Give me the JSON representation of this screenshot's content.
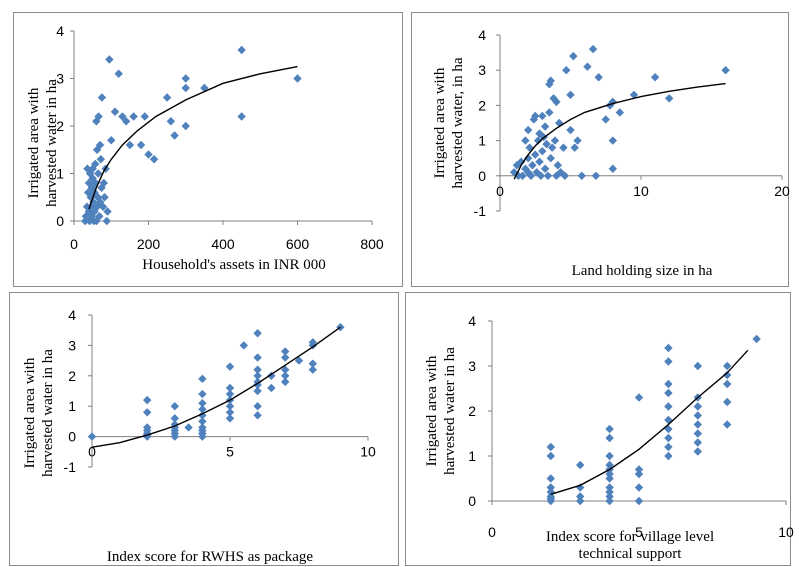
{
  "chart_data": [
    {
      "type": "scatter",
      "xlabel": "Household's assets in INR 000",
      "ylabel": [
        "Irrigated area with",
        "harvested water in ha"
      ],
      "xlim": [
        0,
        800
      ],
      "ylim": [
        0,
        4
      ],
      "xticks": [
        0,
        200,
        400,
        600,
        800
      ],
      "yticks": [
        0,
        1,
        2,
        3,
        4
      ],
      "trendline": "logarithmic",
      "points": [
        [
          30,
          0.0
        ],
        [
          32,
          0.1
        ],
        [
          35,
          0.3
        ],
        [
          36,
          1.1
        ],
        [
          38,
          0.6
        ],
        [
          40,
          0.8
        ],
        [
          40,
          0.2
        ],
        [
          42,
          0.0
        ],
        [
          43,
          1.0
        ],
        [
          45,
          0.5
        ],
        [
          46,
          0.3
        ],
        [
          48,
          0.7
        ],
        [
          48,
          0.1
        ],
        [
          50,
          0.9
        ],
        [
          50,
          1.1
        ],
        [
          52,
          0.4
        ],
        [
          53,
          0.0
        ],
        [
          55,
          0.2
        ],
        [
          55,
          0.6
        ],
        [
          57,
          1.2
        ],
        [
          58,
          0.8
        ],
        [
          60,
          2.1
        ],
        [
          60,
          0.0
        ],
        [
          62,
          1.5
        ],
        [
          62,
          0.3
        ],
        [
          64,
          0.5
        ],
        [
          65,
          1.0
        ],
        [
          66,
          2.2
        ],
        [
          68,
          0.1
        ],
        [
          70,
          0.4
        ],
        [
          70,
          1.6
        ],
        [
          72,
          1.3
        ],
        [
          74,
          0.7
        ],
        [
          75,
          2.6
        ],
        [
          78,
          0.3
        ],
        [
          80,
          0.8
        ],
        [
          82,
          0.5
        ],
        [
          85,
          1.1
        ],
        [
          88,
          0.0
        ],
        [
          90,
          0.2
        ],
        [
          95,
          3.4
        ],
        [
          100,
          1.7
        ],
        [
          110,
          2.3
        ],
        [
          120,
          3.1
        ],
        [
          130,
          2.2
        ],
        [
          140,
          2.1
        ],
        [
          150,
          1.6
        ],
        [
          160,
          2.2
        ],
        [
          180,
          1.6
        ],
        [
          190,
          2.2
        ],
        [
          200,
          1.4
        ],
        [
          215,
          1.3
        ],
        [
          250,
          2.6
        ],
        [
          260,
          2.1
        ],
        [
          270,
          1.8
        ],
        [
          300,
          2.0
        ],
        [
          300,
          2.8
        ],
        [
          300,
          3.0
        ],
        [
          350,
          2.8
        ],
        [
          450,
          2.2
        ],
        [
          450,
          3.6
        ],
        [
          600,
          3.0
        ]
      ],
      "fit": [
        [
          40,
          0.25
        ],
        [
          60,
          0.7
        ],
        [
          80,
          1.05
        ],
        [
          100,
          1.3
        ],
        [
          130,
          1.6
        ],
        [
          170,
          1.9
        ],
        [
          220,
          2.2
        ],
        [
          300,
          2.55
        ],
        [
          400,
          2.9
        ],
        [
          500,
          3.1
        ],
        [
          600,
          3.25
        ]
      ]
    },
    {
      "type": "scatter",
      "xlabel": "Land holding size in ha",
      "ylabel": [
        "Irrigated area with",
        "harvested water, in ha"
      ],
      "xlim": [
        0,
        20
      ],
      "ylim": [
        -1,
        4
      ],
      "xticks": [
        0,
        10,
        20
      ],
      "yticks": [
        -1,
        0,
        1,
        2,
        3,
        4
      ],
      "trendline": "logarithmic",
      "points": [
        [
          1.0,
          0.1
        ],
        [
          1.2,
          0.3
        ],
        [
          1.3,
          0.0
        ],
        [
          1.5,
          0.4
        ],
        [
          1.6,
          0.0
        ],
        [
          1.8,
          0.2
        ],
        [
          1.8,
          1.0
        ],
        [
          2.0,
          0.1
        ],
        [
          2.0,
          0.5
        ],
        [
          2.0,
          1.3
        ],
        [
          2.1,
          0.8
        ],
        [
          2.2,
          0.0
        ],
        [
          2.3,
          0.3
        ],
        [
          2.4,
          1.6
        ],
        [
          2.5,
          0.6
        ],
        [
          2.5,
          1.7
        ],
        [
          2.6,
          0.1
        ],
        [
          2.7,
          1.0
        ],
        [
          2.8,
          0.4
        ],
        [
          2.8,
          1.2
        ],
        [
          2.9,
          0.0
        ],
        [
          3.0,
          0.7
        ],
        [
          3.0,
          1.7
        ],
        [
          3.1,
          1.1
        ],
        [
          3.2,
          0.2
        ],
        [
          3.2,
          1.4
        ],
        [
          3.3,
          0.9
        ],
        [
          3.4,
          0.0
        ],
        [
          3.5,
          2.6
        ],
        [
          3.5,
          1.8
        ],
        [
          3.6,
          2.7
        ],
        [
          3.6,
          0.5
        ],
        [
          3.7,
          0.8
        ],
        [
          3.8,
          2.2
        ],
        [
          3.9,
          1.0
        ],
        [
          4.0,
          0.0
        ],
        [
          4.0,
          2.1
        ],
        [
          4.1,
          0.3
        ],
        [
          4.2,
          1.5
        ],
        [
          4.3,
          0.1
        ],
        [
          4.5,
          0.8
        ],
        [
          4.6,
          0.0
        ],
        [
          4.7,
          3.0
        ],
        [
          5.0,
          1.3
        ],
        [
          5.0,
          2.3
        ],
        [
          5.2,
          3.4
        ],
        [
          5.3,
          0.8
        ],
        [
          5.5,
          1.0
        ],
        [
          5.8,
          0.0
        ],
        [
          6.2,
          3.1
        ],
        [
          6.6,
          3.6
        ],
        [
          6.8,
          0.0
        ],
        [
          7.0,
          2.8
        ],
        [
          7.5,
          1.6
        ],
        [
          7.8,
          2.0
        ],
        [
          8.0,
          0.2
        ],
        [
          8.0,
          1.0
        ],
        [
          8.0,
          2.1
        ],
        [
          8.5,
          1.8
        ],
        [
          9.5,
          2.3
        ],
        [
          11.0,
          2.8
        ],
        [
          12.0,
          2.2
        ],
        [
          16.0,
          3.0
        ]
      ],
      "fit": [
        [
          1.0,
          -0.1
        ],
        [
          1.5,
          0.3
        ],
        [
          2.0,
          0.6
        ],
        [
          2.5,
          0.85
        ],
        [
          3.0,
          1.05
        ],
        [
          4.0,
          1.35
        ],
        [
          5.0,
          1.6
        ],
        [
          6.0,
          1.8
        ],
        [
          8.0,
          2.05
        ],
        [
          10.0,
          2.25
        ],
        [
          12.0,
          2.4
        ],
        [
          14.0,
          2.52
        ],
        [
          16.0,
          2.62
        ]
      ]
    },
    {
      "type": "scatter",
      "xlabel": "Index score for RWHS as package",
      "ylabel": [
        "Irrigated area with",
        "harvested water in ha"
      ],
      "xlim": [
        0,
        10
      ],
      "ylim": [
        -1,
        4
      ],
      "xticks": [
        0,
        5,
        10
      ],
      "yticks": [
        -1,
        0,
        1,
        2,
        3,
        4
      ],
      "trendline": "polynomial",
      "points": [
        [
          0,
          0.0
        ],
        [
          2,
          1.2
        ],
        [
          2,
          0.8
        ],
        [
          2,
          0.3
        ],
        [
          2,
          0.1
        ],
        [
          2,
          0.0
        ],
        [
          2,
          0.05
        ],
        [
          2,
          0.2
        ],
        [
          3,
          1.0
        ],
        [
          3,
          0.6
        ],
        [
          3,
          0.4
        ],
        [
          3,
          0.2
        ],
        [
          3,
          0.1
        ],
        [
          3,
          0.0
        ],
        [
          3,
          0.3
        ],
        [
          3.5,
          0.3
        ],
        [
          4,
          1.9
        ],
        [
          4,
          1.4
        ],
        [
          4,
          1.1
        ],
        [
          4,
          0.9
        ],
        [
          4,
          0.7
        ],
        [
          4,
          0.5
        ],
        [
          4,
          0.3
        ],
        [
          4,
          0.2
        ],
        [
          4,
          0.1
        ],
        [
          4,
          0.0
        ],
        [
          5,
          2.3
        ],
        [
          5,
          1.6
        ],
        [
          5,
          1.4
        ],
        [
          5,
          1.2
        ],
        [
          5,
          1.0
        ],
        [
          5,
          0.8
        ],
        [
          5,
          0.6
        ],
        [
          5.5,
          3.0
        ],
        [
          6,
          3.4
        ],
        [
          6,
          2.6
        ],
        [
          6,
          2.2
        ],
        [
          6,
          2.0
        ],
        [
          6,
          1.8
        ],
        [
          6,
          1.7
        ],
        [
          6,
          1.5
        ],
        [
          6,
          1.0
        ],
        [
          6,
          0.7
        ],
        [
          6.5,
          2.0
        ],
        [
          6.5,
          1.6
        ],
        [
          7,
          2.8
        ],
        [
          7,
          2.6
        ],
        [
          7,
          2.2
        ],
        [
          7,
          2.0
        ],
        [
          7,
          1.8
        ],
        [
          7.5,
          2.5
        ],
        [
          8,
          3.1
        ],
        [
          8,
          3.0
        ],
        [
          8,
          2.4
        ],
        [
          8,
          2.2
        ],
        [
          9,
          3.6
        ]
      ],
      "fit": [
        [
          0,
          -0.35
        ],
        [
          1,
          -0.2
        ],
        [
          2,
          0.05
        ],
        [
          3,
          0.35
        ],
        [
          4,
          0.75
        ],
        [
          5,
          1.2
        ],
        [
          6,
          1.75
        ],
        [
          7,
          2.35
        ],
        [
          8,
          2.95
        ],
        [
          9,
          3.6
        ]
      ]
    },
    {
      "type": "scatter",
      "xlabel": [
        "Index score for village level",
        "technical support"
      ],
      "ylabel": [
        "Irrigated area with",
        "harvested water in ha"
      ],
      "xlim": [
        0,
        10
      ],
      "ylim": [
        0,
        4
      ],
      "xticks": [
        0,
        5,
        10
      ],
      "yticks": [
        0,
        1,
        2,
        3,
        4
      ],
      "trendline": "polynomial",
      "points": [
        [
          2,
          1.2
        ],
        [
          2,
          1.0
        ],
        [
          2,
          0.5
        ],
        [
          2,
          0.3
        ],
        [
          2,
          0.2
        ],
        [
          2,
          0.1
        ],
        [
          2,
          0.0
        ],
        [
          2,
          0.05
        ],
        [
          3,
          0.8
        ],
        [
          3,
          0.3
        ],
        [
          3,
          0.1
        ],
        [
          3,
          0.0
        ],
        [
          4,
          1.6
        ],
        [
          4,
          1.4
        ],
        [
          4,
          1.0
        ],
        [
          4,
          0.8
        ],
        [
          4,
          0.7
        ],
        [
          4,
          0.6
        ],
        [
          4,
          0.5
        ],
        [
          4,
          0.3
        ],
        [
          4,
          0.2
        ],
        [
          4,
          0.1
        ],
        [
          4,
          0.0
        ],
        [
          5,
          2.3
        ],
        [
          5,
          0.7
        ],
        [
          5,
          0.6
        ],
        [
          5,
          0.3
        ],
        [
          5,
          0.0
        ],
        [
          6,
          3.4
        ],
        [
          6,
          3.1
        ],
        [
          6,
          2.6
        ],
        [
          6,
          2.4
        ],
        [
          6,
          2.1
        ],
        [
          6,
          1.8
        ],
        [
          6,
          1.6
        ],
        [
          6,
          1.4
        ],
        [
          6,
          1.2
        ],
        [
          6,
          1.0
        ],
        [
          7,
          3.0
        ],
        [
          7,
          2.3
        ],
        [
          7,
          2.1
        ],
        [
          7,
          1.9
        ],
        [
          7,
          1.7
        ],
        [
          7,
          1.5
        ],
        [
          7,
          1.3
        ],
        [
          7,
          1.1
        ],
        [
          8,
          3.0
        ],
        [
          8,
          2.8
        ],
        [
          8,
          2.6
        ],
        [
          8,
          2.2
        ],
        [
          8,
          1.7
        ],
        [
          9,
          3.6
        ]
      ],
      "fit": [
        [
          2,
          0.15
        ],
        [
          3,
          0.35
        ],
        [
          4,
          0.7
        ],
        [
          5,
          1.15
        ],
        [
          6,
          1.7
        ],
        [
          7,
          2.3
        ],
        [
          8,
          2.85
        ],
        [
          8.7,
          3.35
        ]
      ]
    }
  ]
}
